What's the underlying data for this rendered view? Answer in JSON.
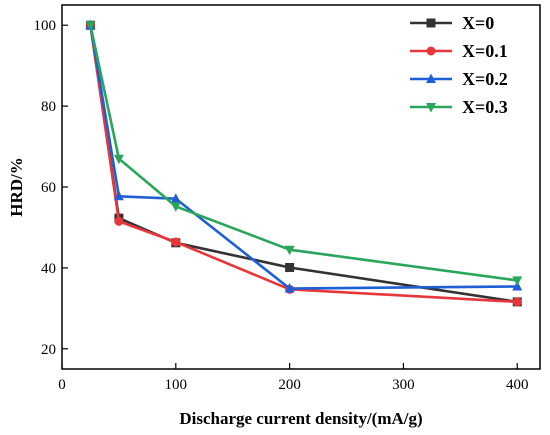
{
  "chart_data": {
    "type": "line",
    "title": "",
    "xlabel": "Discharge current density/(mA/g)",
    "ylabel": "HRD/%",
    "xlim": [
      0,
      420
    ],
    "ylim": [
      15,
      105
    ],
    "xticks": [
      0,
      100,
      200,
      300,
      400
    ],
    "yticks": [
      20,
      40,
      60,
      80,
      100
    ],
    "grid": false,
    "legend_position": "top-right",
    "x": [
      25,
      50,
      100,
      200,
      400
    ],
    "series": [
      {
        "name": "X=0",
        "color": "#333333",
        "marker": "square",
        "values": [
          100,
          52.3,
          46.2,
          40.1,
          31.6
        ]
      },
      {
        "name": "X=0.1",
        "color": "#e8373a",
        "marker": "circle",
        "values": [
          100,
          51.5,
          46.4,
          34.7,
          31.6
        ]
      },
      {
        "name": "X=0.2",
        "color": "#1f5fd6",
        "marker": "triangle-up",
        "values": [
          100,
          57.7,
          57.1,
          34.9,
          35.4
        ]
      },
      {
        "name": "X=0.3",
        "color": "#2aa65a",
        "marker": "triangle-down",
        "values": [
          100,
          67.0,
          55.2,
          44.5,
          36.9
        ]
      }
    ]
  }
}
